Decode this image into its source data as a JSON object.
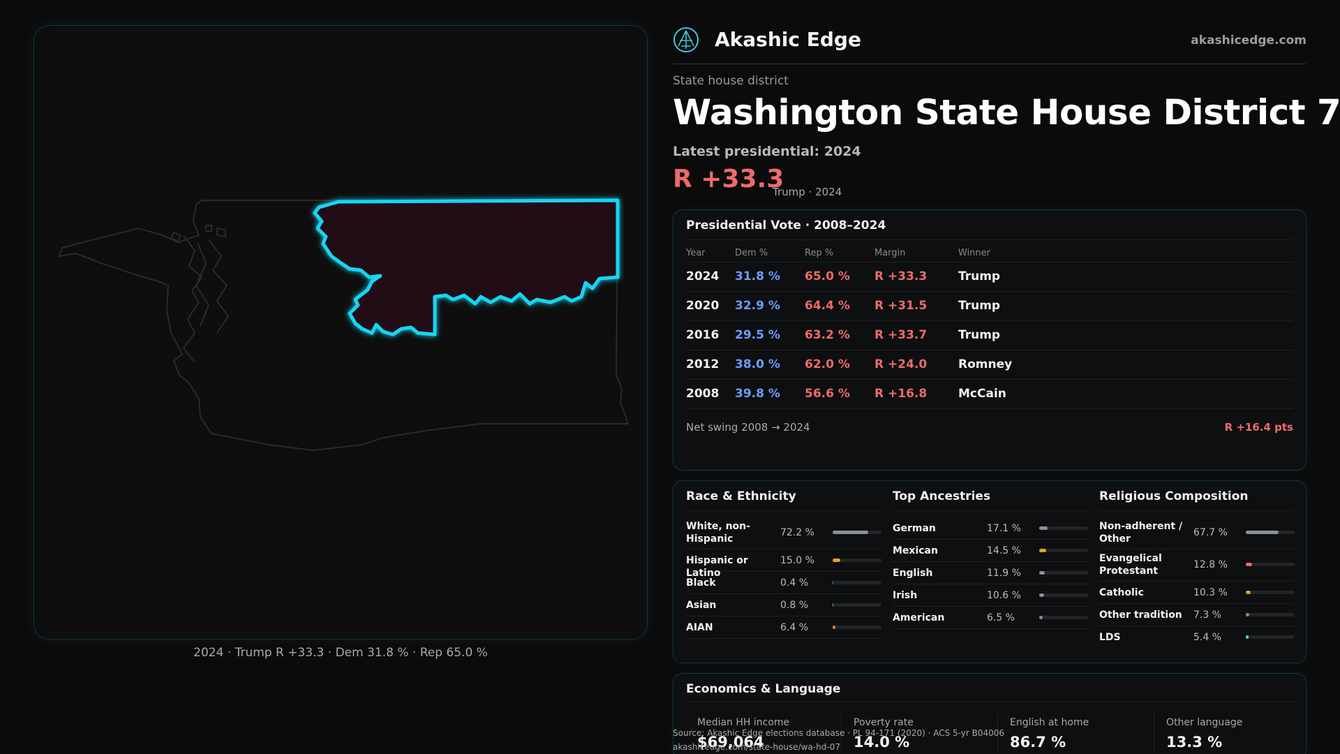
{
  "brand": {
    "name": "Akashic Edge",
    "url": "akashicedge.com"
  },
  "header": {
    "kicker": "State house district",
    "title": "Washington State House District 7",
    "latest": "Latest presidential: 2024",
    "margin": "R +33.3",
    "margin_sub": "Trump · 2024"
  },
  "map": {
    "caption": "2024 · Trump R +33.3 · Dem 31.8 % · Rep 65.0 %",
    "colors": {
      "outline": "#2a2a2b",
      "highlight_stroke": "#12d6f2",
      "highlight_fill": "#231112"
    }
  },
  "presidential": {
    "title": "Presidential Vote · 2008–2024",
    "columns": [
      "Year",
      "Dem %",
      "Rep %",
      "Margin",
      "Winner"
    ],
    "rows": [
      {
        "year": "2024",
        "dem": "31.8 %",
        "rep": "65.0 %",
        "margin": "R +33.3",
        "winner": "Trump"
      },
      {
        "year": "2020",
        "dem": "32.9 %",
        "rep": "64.4 %",
        "margin": "R +31.5",
        "winner": "Trump"
      },
      {
        "year": "2016",
        "dem": "29.5 %",
        "rep": "63.2 %",
        "margin": "R +33.7",
        "winner": "Trump"
      },
      {
        "year": "2012",
        "dem": "38.0 %",
        "rep": "62.0 %",
        "margin": "R +24.0",
        "winner": "Romney"
      },
      {
        "year": "2008",
        "dem": "39.8 %",
        "rep": "56.6 %",
        "margin": "R +16.8",
        "winner": "McCain"
      }
    ],
    "swing_label": "Net swing 2008 → 2024",
    "swing_value": "R +16.4 pts",
    "colors": {
      "dem": "#6f9dff",
      "rep": "#f06a6a"
    }
  },
  "demographics": {
    "race": {
      "title": "Race & Ethnicity",
      "items": [
        {
          "label": "White, non-Hispanic",
          "pct": "72.2 %",
          "value": 72.2,
          "color": "#8a9099"
        },
        {
          "label": "Hispanic or Latino",
          "pct": "15.0 %",
          "value": 15.0,
          "color": "#e0a22a"
        },
        {
          "label": "Black",
          "pct": "0.4 %",
          "value": 0.4,
          "color": "#5b6cff"
        },
        {
          "label": "Asian",
          "pct": "0.8 %",
          "value": 0.8,
          "color": "#3fbf9f"
        },
        {
          "label": "AIAN",
          "pct": "6.4 %",
          "value": 6.4,
          "color": "#e07b2a"
        }
      ]
    },
    "ancestry": {
      "title": "Top Ancestries",
      "items": [
        {
          "label": "German",
          "pct": "17.1 %",
          "value": 17.1,
          "color": "#8a9099"
        },
        {
          "label": "Mexican",
          "pct": "14.5 %",
          "value": 14.5,
          "color": "#e0a22a"
        },
        {
          "label": "English",
          "pct": "11.9 %",
          "value": 11.9,
          "color": "#8a9099"
        },
        {
          "label": "Irish",
          "pct": "10.6 %",
          "value": 10.6,
          "color": "#8a9099"
        },
        {
          "label": "American",
          "pct": "6.5 %",
          "value": 6.5,
          "color": "#8a9099"
        }
      ]
    },
    "religion": {
      "title": "Religious Composition",
      "items": [
        {
          "label": "Non-adherent / Other",
          "pct": "67.7 %",
          "value": 67.7,
          "color": "#8a9099"
        },
        {
          "label": "Evangelical Protestant",
          "pct": "12.8 %",
          "value": 12.8,
          "color": "#f06a6a"
        },
        {
          "label": "Catholic",
          "pct": "10.3 %",
          "value": 10.3,
          "color": "#e0a22a"
        },
        {
          "label": "Other tradition",
          "pct": "7.3 %",
          "value": 7.3,
          "color": "#8a9099"
        },
        {
          "label": "LDS",
          "pct": "5.4 %",
          "value": 5.4,
          "color": "#3fd6c4"
        }
      ]
    }
  },
  "economics": {
    "title": "Economics & Language",
    "cells": [
      {
        "label": "Median HH income",
        "value": "$69,064"
      },
      {
        "label": "Poverty rate",
        "value": "14.0 %"
      },
      {
        "label": "English at home",
        "value": "86.7 %"
      },
      {
        "label": "Other language",
        "value": "13.3 %"
      }
    ]
  },
  "footer": {
    "source": "Source: Akashic Edge elections database · PL 94-171 (2020) · ACS 5-yr B04006",
    "url": "akashicedge.com/state-house/wa-hd-07"
  }
}
